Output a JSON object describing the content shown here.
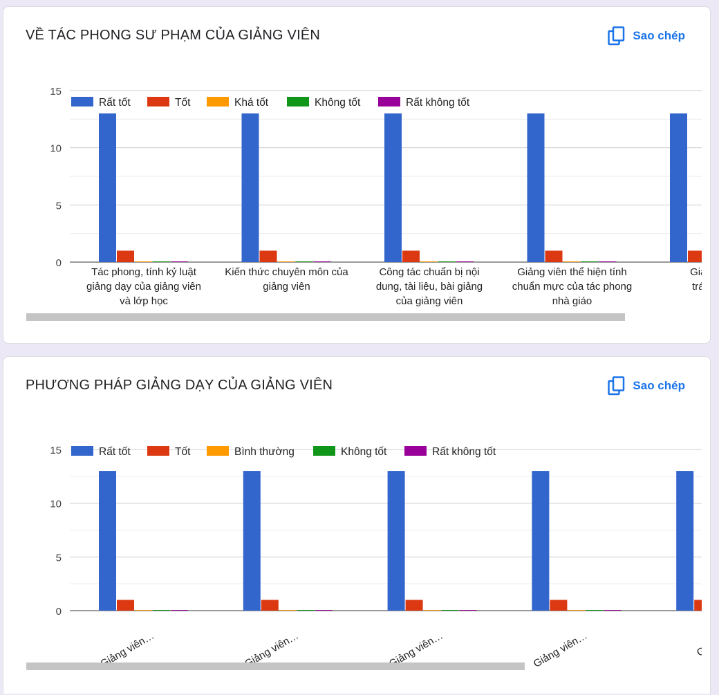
{
  "colors": {
    "series": [
      "#3366cc",
      "#dc3912",
      "#ff9900",
      "#109618",
      "#990099"
    ],
    "accent": "#1a73e8",
    "grid": "#cccccc",
    "minorGrid": "#ebebeb",
    "scrollbar": "#c4c4c4",
    "background": "#ece8f6"
  },
  "icons": {
    "copy": "copy-icon"
  },
  "cards": [
    {
      "title": "VỀ TÁC PHONG SƯ PHẠM CỦA GIẢNG VIÊN",
      "copy_label": "Sao chép"
    },
    {
      "title": "PHƯƠNG PHÁP GIẢNG DẠY CỦA GIẢNG VIÊN",
      "copy_label": "Sao chép"
    }
  ],
  "chart_data": [
    {
      "type": "bar",
      "title": "VỀ TÁC PHONG SƯ PHẠM CỦA GIẢNG VIÊN",
      "ylim": [
        0,
        15
      ],
      "yticks": [
        0,
        5,
        10,
        15
      ],
      "legend_position": "top",
      "categories": [
        [
          "Tác phong, tính kỷ luật",
          "giảng dạy của giảng viên",
          "và lớp học"
        ],
        [
          "Kiến thức chuyên môn của",
          "giảng viên"
        ],
        [
          "Công tác chuẩn bị nội",
          "dung, tài liệu, bài giảng",
          "của giảng viên"
        ],
        [
          "Giảng viên thể hiện tính",
          "chuẩn mực của tác phong",
          "nhà giáo"
        ],
        [
          "Giảng viên",
          "trách nhiệ"
        ]
      ],
      "category_label_style": "horizontal",
      "series": [
        {
          "name": "Rất tốt",
          "values": [
            13,
            13,
            13,
            13,
            13
          ]
        },
        {
          "name": "Tốt",
          "values": [
            1,
            1,
            1,
            1,
            1
          ]
        },
        {
          "name": "Khá tốt",
          "values": [
            0,
            0,
            0,
            0,
            0
          ]
        },
        {
          "name": "Không tốt",
          "values": [
            0,
            0,
            0,
            0,
            0
          ]
        },
        {
          "name": "Rất không tốt",
          "values": [
            0,
            0,
            0,
            0,
            0
          ]
        }
      ]
    },
    {
      "type": "bar",
      "title": "PHƯƠNG PHÁP GIẢNG DẠY CỦA GIẢNG VIÊN",
      "ylim": [
        0,
        15
      ],
      "yticks": [
        0,
        5,
        10,
        15
      ],
      "legend_position": "top",
      "categories": [
        [
          "Giảng viên…"
        ],
        [
          "Giảng viên…"
        ],
        [
          "Giảng viên…"
        ],
        [
          "Giảng viên…"
        ],
        [
          "Giảng vi"
        ]
      ],
      "category_label_style": "rotated",
      "series": [
        {
          "name": "Rất tốt",
          "values": [
            13,
            13,
            13,
            13,
            13
          ]
        },
        {
          "name": "Tốt",
          "values": [
            1,
            1,
            1,
            1,
            1
          ]
        },
        {
          "name": "Bình thường",
          "values": [
            0,
            0,
            0,
            0,
            0
          ]
        },
        {
          "name": "Không tốt",
          "values": [
            0,
            0,
            0,
            0,
            0
          ]
        },
        {
          "name": "Rất không tốt",
          "values": [
            0,
            0,
            0,
            0,
            0
          ]
        }
      ]
    }
  ]
}
